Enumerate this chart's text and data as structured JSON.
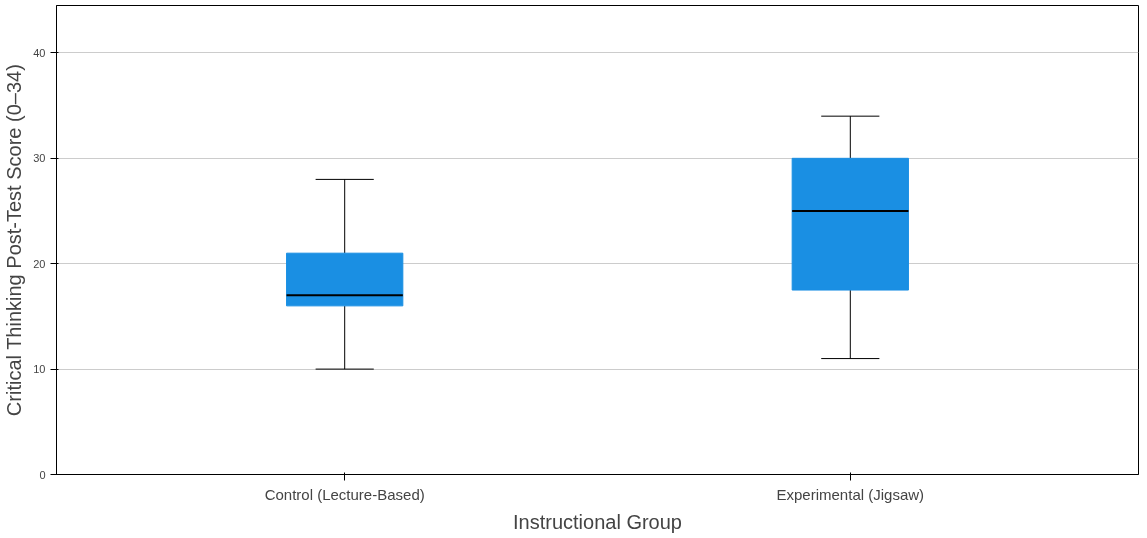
{
  "chart_data": {
    "type": "box",
    "xlabel": "Instructional Group",
    "ylabel": "Critical Thinking Post-Test Score (0–34)",
    "categories": [
      "Control (Lecture-Based)",
      "Experimental (Jigsaw)"
    ],
    "boxes": [
      {
        "low": 10,
        "q1": 16,
        "median": 17,
        "q3": 21,
        "high": 28
      },
      {
        "low": 11,
        "q1": 17.5,
        "median": 25,
        "q3": 30,
        "high": 34
      }
    ],
    "color": "#1a8fe3",
    "ylim": [
      0,
      44.5
    ],
    "yticks": [
      0,
      10,
      20,
      30,
      40
    ],
    "grid": "y"
  }
}
